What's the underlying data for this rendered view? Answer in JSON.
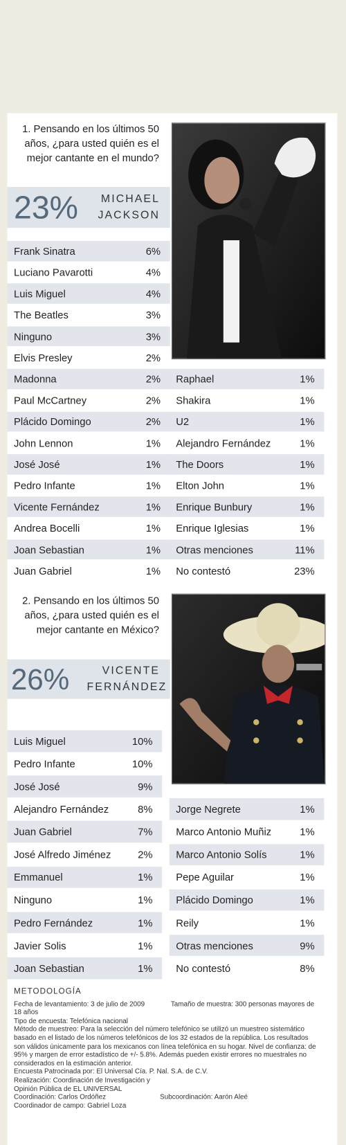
{
  "question1": {
    "text": "1. Pensando en los últimos 50 años, ¿para usted quién es el mejor cantante en el mundo?",
    "top": {
      "percent": "23%",
      "name": "MICHAEL JACKSON"
    },
    "rows_left": [
      [
        "Frank Sinatra",
        "6%"
      ],
      [
        "Luciano Pavarotti",
        "4%"
      ],
      [
        "Luis Miguel",
        "4%"
      ],
      [
        "The Beatles",
        "3%"
      ],
      [
        "Ninguno",
        "3%"
      ],
      [
        "Elvis Presley",
        "2%"
      ],
      [
        "Madonna",
        "2%"
      ],
      [
        "Paul McCartney",
        "2%"
      ],
      [
        "Plácido Domingo",
        "2%"
      ],
      [
        "John Lennon",
        "1%"
      ],
      [
        "José José",
        "1%"
      ],
      [
        "Pedro Infante",
        "1%"
      ],
      [
        "Vicente Fernández",
        "1%"
      ],
      [
        "Andrea Bocelli",
        "1%"
      ],
      [
        "Joan Sebastian",
        "1%"
      ],
      [
        "Juan Gabriel",
        "1%"
      ]
    ],
    "rows_right": [
      [
        "Raphael",
        "1%"
      ],
      [
        "Shakira",
        "1%"
      ],
      [
        "U2",
        "1%"
      ],
      [
        "Alejandro Fernández",
        "1%"
      ],
      [
        "The Doors",
        "1%"
      ],
      [
        "Elton John",
        "1%"
      ],
      [
        "Enrique Bunbury",
        "1%"
      ],
      [
        "Enrique Iglesias",
        "1%"
      ],
      [
        "Otras menciones",
        "11%"
      ],
      [
        "No contestó",
        "23%"
      ]
    ]
  },
  "question2": {
    "text": "2. Pensando en los últimos 50 años, ¿para usted quién es el mejor cantante en México?",
    "top": {
      "percent": "26%",
      "name": "VICENTE FERNÁNDEZ"
    },
    "rows_left": [
      [
        "Luis Miguel",
        "10%"
      ],
      [
        "Pedro Infante",
        "10%"
      ],
      [
        "José José",
        "9%"
      ],
      [
        "Alejandro Fernández",
        "8%"
      ],
      [
        "Juan Gabriel",
        "7%"
      ],
      [
        "José Alfredo Jiménez",
        "2%"
      ],
      [
        "Emmanuel",
        "1%"
      ],
      [
        "Ninguno",
        "1%"
      ],
      [
        "Pedro Fernández",
        "1%"
      ],
      [
        "Javier Solis",
        "1%"
      ],
      [
        "Joan Sebastian",
        "1%"
      ]
    ],
    "rows_right": [
      [
        "Jorge Negrete",
        "1%"
      ],
      [
        "Marco Antonio Muñiz",
        "1%"
      ],
      [
        "Marco Antonio Solís",
        "1%"
      ],
      [
        "Pepe Aguilar",
        "1%"
      ],
      [
        "Plácido Domingo",
        "1%"
      ],
      [
        "Reily",
        "1%"
      ],
      [
        "Otras menciones",
        "9%"
      ],
      [
        "No contestó",
        "8%"
      ]
    ]
  },
  "methodology": {
    "title": "METODOLOGÍA",
    "date": "Fecha de levantamiento: 3 de julio de 2009",
    "sample": "Tamaño de muestra: 300 personas mayores de 18 años",
    "survey_type": "Tipo de encuesta: Telefónica nacional",
    "method": "Método de muestreo: Para la selección del número telefónico se utilizó un muestreo sistemático basado en el listado de los números telefónicos de los 32 estados de la república. Los resultados son válidos únicamente para los mexicanos con línea telefónica en su hogar. Nivel de confianza: de 95% y margen de error estadístico de +/- 5.8%. Además pueden existir errores no muestrales no considerados en la estimación anterior.",
    "sponsor": "Encuesta Patrocinada por: El Universal Cía. P. Nal. S.A. de C.V.",
    "realization": "Realización: Coordinación de Investigación y Opinión Pública de EL UNIVERSAL",
    "coordination": "Coordinación: Carlos Ordóñez",
    "subcoordination": "Subcoordinación: Aarón Aleé",
    "field": "Coordinador de campo: Gabriel Loza"
  }
}
